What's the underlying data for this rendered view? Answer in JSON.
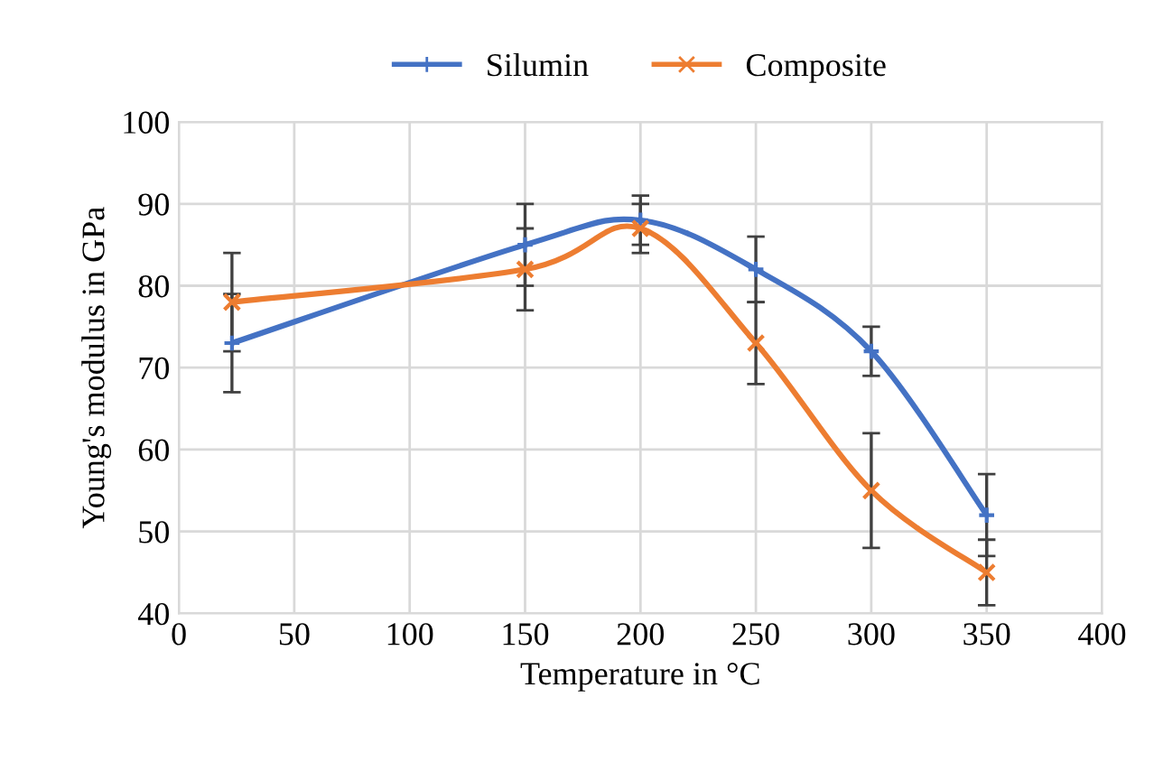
{
  "chart_data": {
    "type": "line",
    "xlabel": "Temperature in °C",
    "ylabel": "Young's modulus in GPa",
    "x": [
      23,
      150,
      200,
      250,
      300,
      350
    ],
    "series": [
      {
        "name": "Silumin",
        "color": "#4472c4",
        "marker": "plus",
        "values": [
          73,
          85,
          88,
          82,
          72,
          52
        ],
        "errors": [
          6,
          5,
          3,
          4,
          3,
          5
        ]
      },
      {
        "name": "Composite",
        "color": "#ed7d31",
        "marker": "cross",
        "values": [
          78,
          82,
          87,
          73,
          55,
          45
        ],
        "errors": [
          6,
          5,
          3,
          5,
          7,
          4
        ]
      }
    ],
    "xlim": [
      0,
      400
    ],
    "xticks": [
      0,
      50,
      100,
      150,
      200,
      250,
      300,
      350,
      400
    ],
    "ylim": [
      40,
      100
    ],
    "yticks": [
      40,
      50,
      60,
      70,
      80,
      90,
      100
    ],
    "grid": true,
    "legend": "top"
  }
}
